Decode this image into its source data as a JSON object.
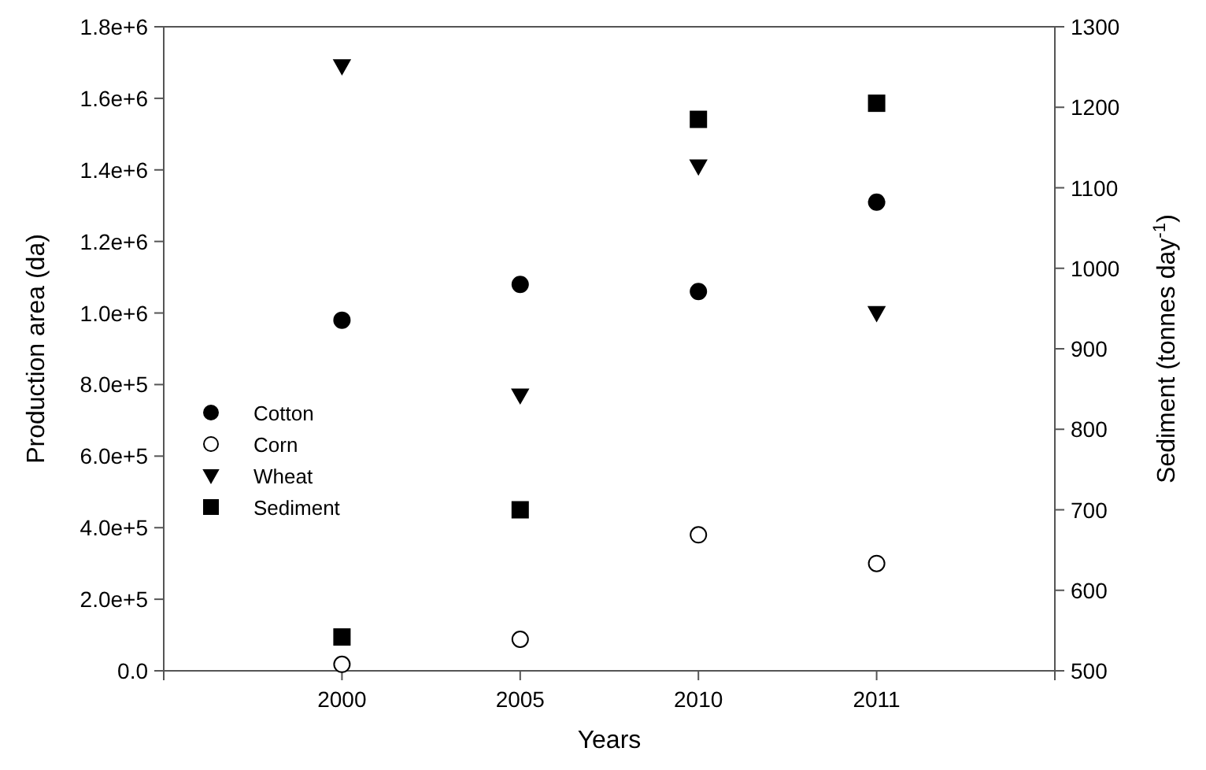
{
  "chart_data": {
    "type": "scatter",
    "xlabel": "Years",
    "ylabel": "Production area (da)",
    "y2label": "Sediment (tonnes day$^{-1}$)",
    "categories": [
      "2000",
      "2005",
      "2010",
      "2011"
    ],
    "series": [
      {
        "name": "Cotton",
        "color": "#000000",
        "marker": "circle",
        "values": [
          980000,
          1080000,
          1060000,
          1310000
        ]
      },
      {
        "name": "Corn",
        "color": "#ffffff",
        "marker": "circle",
        "values": [
          18000,
          88000,
          380000,
          300000
        ]
      },
      {
        "name": "Wheat",
        "color": "#000000",
        "marker": "triangle",
        "values": [
          1690000,
          770000,
          1410000,
          1000000
        ]
      },
      {
        "name": "Sediment",
        "color": "#000000",
        "marker": "square",
        "axis": "y2",
        "values": [
          542,
          700,
          1185,
          1205
        ]
      }
    ],
    "ylim": [
      0,
      1800000
    ],
    "yticks": [
      {
        "value": 0,
        "label": "0.0"
      },
      {
        "value": 200000,
        "label": "2.0e+5"
      },
      {
        "value": 400000,
        "label": "4.0e+5"
      },
      {
        "value": 600000,
        "label": "6.0e+5"
      },
      {
        "value": 800000,
        "label": "8.0e+5"
      },
      {
        "value": 1000000,
        "label": "1.0e+6"
      },
      {
        "value": 1200000,
        "label": "1.2e+6"
      },
      {
        "value": 1400000,
        "label": "1.4e+6"
      },
      {
        "value": 1600000,
        "label": "1.6e+6"
      },
      {
        "value": 1800000,
        "label": "1.8e+6"
      }
    ],
    "y2lim": [
      500,
      1300
    ],
    "y2ticks": [
      500,
      600,
      700,
      800,
      900,
      1000,
      1100,
      1200,
      1300
    ],
    "grid": false,
    "legend": "left"
  }
}
